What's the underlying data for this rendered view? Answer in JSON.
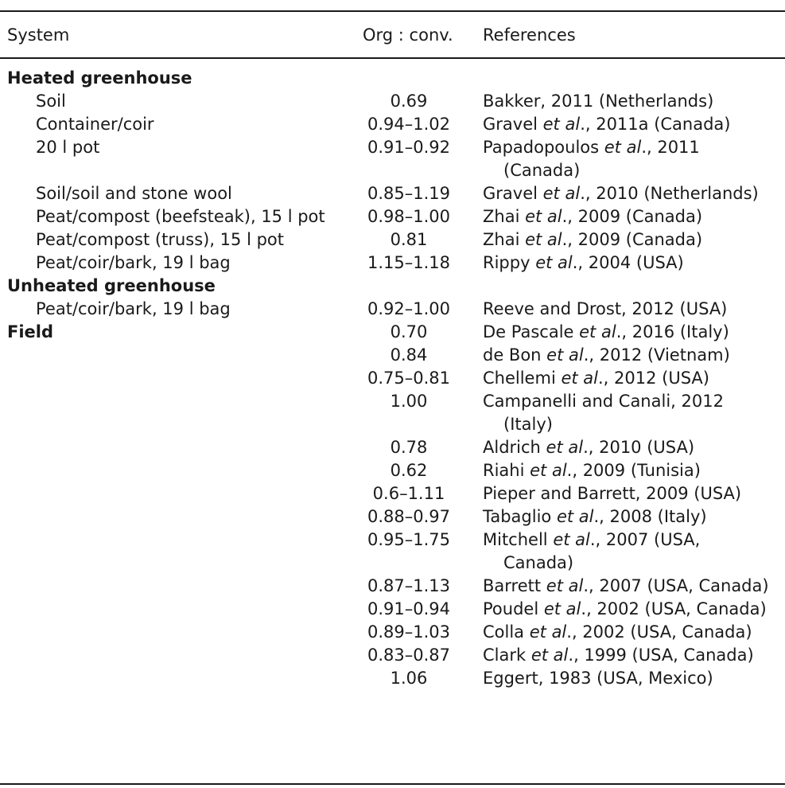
{
  "header": {
    "system": "System",
    "ratio": "Org : conv.",
    "references": "References"
  },
  "rows": [
    {
      "type": "section",
      "system": "Heated greenhouse",
      "ratio": "",
      "ref": []
    },
    {
      "type": "item",
      "system": "Soil",
      "ratio": "0.69",
      "ref": [
        {
          "t": "Bakker, 2011 (Netherlands)"
        }
      ]
    },
    {
      "type": "item",
      "system": "Container/coir",
      "ratio": "0.94–1.02",
      "ref": [
        {
          "t": "Gravel "
        },
        {
          "t": "et al",
          "i": true
        },
        {
          "t": "., 2011a (Canada)"
        }
      ]
    },
    {
      "type": "item",
      "system": "20 l pot",
      "ratio": "0.91–0.92",
      "ref": [
        {
          "t": "Papadopoulos "
        },
        {
          "t": "et al",
          "i": true
        },
        {
          "t": "., 2011"
        }
      ],
      "ref2": "(Canada)"
    },
    {
      "type": "item",
      "system": "Soil/soil and stone wool",
      "ratio": "0.85–1.19",
      "ref": [
        {
          "t": "Gravel "
        },
        {
          "t": "et al",
          "i": true
        },
        {
          "t": "., 2010 (Netherlands)"
        }
      ]
    },
    {
      "type": "item",
      "system": "Peat/compost (beefsteak), 15 l pot",
      "ratio": "0.98–1.00",
      "ref": [
        {
          "t": "Zhai "
        },
        {
          "t": "et al",
          "i": true
        },
        {
          "t": "., 2009 (Canada)"
        }
      ]
    },
    {
      "type": "item",
      "system": "Peat/compost (truss), 15 l pot",
      "ratio": "0.81",
      "ref": [
        {
          "t": "Zhai "
        },
        {
          "t": "et al",
          "i": true
        },
        {
          "t": "., 2009 (Canada)"
        }
      ]
    },
    {
      "type": "item",
      "system": "Peat/coir/bark, 19 l bag",
      "ratio": "1.15–1.18",
      "ref": [
        {
          "t": "Rippy "
        },
        {
          "t": "et al",
          "i": true
        },
        {
          "t": "., 2004 (USA)"
        }
      ]
    },
    {
      "type": "section",
      "system": "Unheated greenhouse",
      "ratio": "",
      "ref": []
    },
    {
      "type": "item",
      "system": "Peat/coir/bark, 19 l bag",
      "ratio": "0.92–1.00",
      "ref": [
        {
          "t": "Reeve and Drost, 2012 (USA)"
        }
      ]
    },
    {
      "type": "section",
      "system": "Field",
      "ratio": "0.70",
      "ref": [
        {
          "t": "De Pascale "
        },
        {
          "t": "et al",
          "i": true
        },
        {
          "t": "., 2016 (Italy)"
        }
      ]
    },
    {
      "type": "item",
      "system": "",
      "ratio": "0.84",
      "ref": [
        {
          "t": "de Bon "
        },
        {
          "t": "et al",
          "i": true
        },
        {
          "t": "., 2012 (Vietnam)"
        }
      ]
    },
    {
      "type": "item",
      "system": "",
      "ratio": "0.75–0.81",
      "ref": [
        {
          "t": "Chellemi "
        },
        {
          "t": "et al",
          "i": true
        },
        {
          "t": "., 2012 (USA)"
        }
      ]
    },
    {
      "type": "item",
      "system": "",
      "ratio": "1.00",
      "ref": [
        {
          "t": "Campanelli and Canali, 2012"
        }
      ],
      "ref2": "(Italy)"
    },
    {
      "type": "item",
      "system": "",
      "ratio": "0.78",
      "ref": [
        {
          "t": "Aldrich "
        },
        {
          "t": "et al",
          "i": true
        },
        {
          "t": "., 2010 (USA)"
        }
      ]
    },
    {
      "type": "item",
      "system": "",
      "ratio": "0.62",
      "ref": [
        {
          "t": "Riahi "
        },
        {
          "t": "et al",
          "i": true
        },
        {
          "t": "., 2009 (Tunisia)"
        }
      ]
    },
    {
      "type": "item",
      "system": "",
      "ratio": "0.6–1.11",
      "ref": [
        {
          "t": "Pieper and Barrett, 2009 (USA)"
        }
      ]
    },
    {
      "type": "item",
      "system": "",
      "ratio": "0.88–0.97",
      "ref": [
        {
          "t": "Tabaglio "
        },
        {
          "t": "et al",
          "i": true
        },
        {
          "t": "., 2008 (Italy)"
        }
      ]
    },
    {
      "type": "item",
      "system": "",
      "ratio": "0.95–1.75",
      "ref": [
        {
          "t": "Mitchell "
        },
        {
          "t": "et al",
          "i": true
        },
        {
          "t": "., 2007 (USA,"
        }
      ],
      "ref2": "Canada)"
    },
    {
      "type": "item",
      "system": "",
      "ratio": "0.87–1.13",
      "ref": [
        {
          "t": "Barrett "
        },
        {
          "t": "et al",
          "i": true
        },
        {
          "t": "., 2007 (USA, Canada)"
        }
      ]
    },
    {
      "type": "item",
      "system": "",
      "ratio": "0.91–0.94",
      "ref": [
        {
          "t": "Poudel "
        },
        {
          "t": "et al",
          "i": true
        },
        {
          "t": "., 2002 (USA, Canada)"
        }
      ]
    },
    {
      "type": "item",
      "system": "",
      "ratio": "0.89–1.03",
      "ref": [
        {
          "t": "Colla "
        },
        {
          "t": "et al",
          "i": true
        },
        {
          "t": "., 2002 (USA, Canada)"
        }
      ]
    },
    {
      "type": "item",
      "system": "",
      "ratio": "0.83–0.87",
      "ref": [
        {
          "t": "Clark "
        },
        {
          "t": "et al",
          "i": true
        },
        {
          "t": "., 1999 (USA, Canada)"
        }
      ]
    },
    {
      "type": "item",
      "system": "",
      "ratio": "1.06",
      "ref": [
        {
          "t": "Eggert, 1983 (USA, Mexico)"
        }
      ]
    }
  ]
}
